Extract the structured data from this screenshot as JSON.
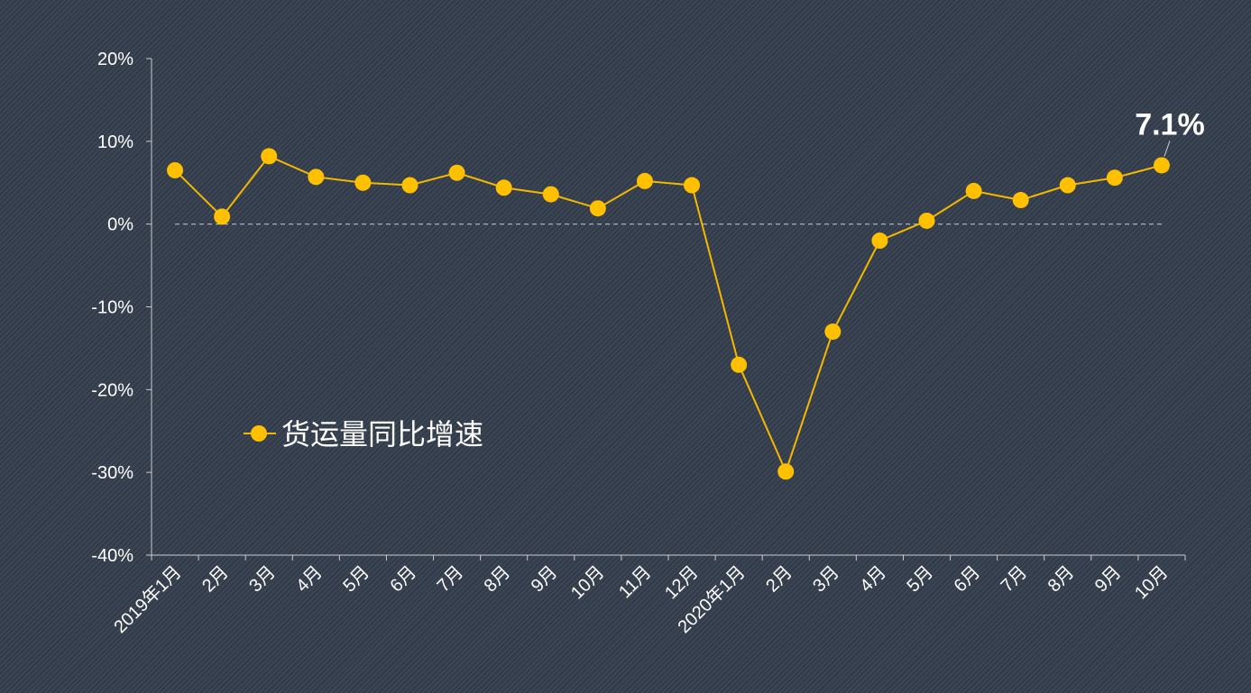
{
  "chart_data": {
    "type": "line",
    "title": "",
    "xlabel": "",
    "ylabel": "",
    "categories": [
      "2019年1月",
      "2月",
      "3月",
      "4月",
      "5月",
      "6月",
      "7月",
      "8月",
      "9月",
      "10月",
      "11月",
      "12月",
      "2020年1月",
      "2月",
      "3月",
      "4月",
      "5月",
      "6月",
      "7月",
      "8月",
      "9月",
      "10月"
    ],
    "series": [
      {
        "name": "货运量同比增速",
        "values": [
          6.5,
          0.9,
          8.2,
          5.7,
          5.0,
          4.7,
          6.2,
          4.4,
          3.6,
          1.9,
          5.2,
          4.7,
          -17.0,
          -29.9,
          -13.0,
          -2.0,
          0.4,
          4.0,
          2.9,
          4.7,
          5.6,
          7.1
        ]
      }
    ],
    "ylim": [
      -40,
      20
    ],
    "yticks": [
      "-40%",
      "-30%",
      "-20%",
      "-10%",
      "0%",
      "10%",
      "20%"
    ],
    "ytick_values": [
      -40,
      -30,
      -20,
      -10,
      0,
      10,
      20
    ],
    "annotation": {
      "text": "7.1%",
      "index": 21
    },
    "grid": false,
    "reference_line": 0,
    "legend_position": "left-middle",
    "colors": {
      "line": "#f5b800",
      "marker": "#ffc000",
      "axis": "#c9ccd1",
      "text": "#ffffff",
      "reference": "#b8bcc4"
    }
  }
}
